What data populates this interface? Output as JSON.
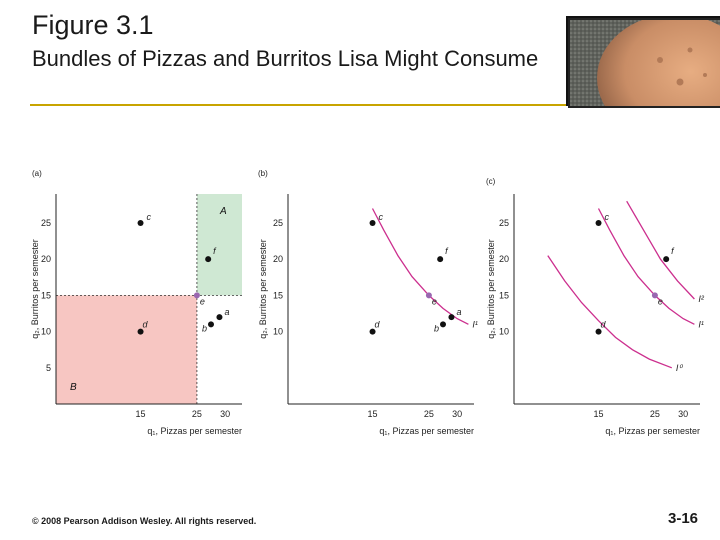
{
  "slide": {
    "title_line1": "Figure 3.1",
    "title_line2": "Bundles of Pizzas and Burritos Lisa Might Consume",
    "footer": "© 2008 Pearson Addison Wesley. All rights reserved.",
    "page_number": "3-16",
    "colors": {
      "accent_rule": "#c8a400",
      "curve": "#cc2f8e",
      "point": "#111111",
      "point_e": "#9a67b0",
      "region_A": "#cfe8d3",
      "region_B": "#f7c6c2"
    }
  },
  "chart_data": [
    {
      "panel": "(a)",
      "type": "scatter",
      "xlabel": "q₁, Pizzas per semester",
      "ylabel": "q₂, Burritos per semester",
      "xlim": [
        0,
        33
      ],
      "ylim": [
        0,
        29
      ],
      "xticks": [
        15,
        25,
        30
      ],
      "yticks": [
        5,
        10,
        15,
        20,
        25
      ],
      "regions": [
        {
          "label": "A",
          "x": [
            25,
            33
          ],
          "y": [
            15,
            29
          ],
          "color": "#cfe8d3"
        },
        {
          "label": "B",
          "x": [
            0,
            25
          ],
          "y": [
            0,
            15
          ],
          "color": "#f7c6c2"
        }
      ],
      "points": [
        {
          "label": "c",
          "x": 15,
          "y": 25
        },
        {
          "label": "f",
          "x": 27,
          "y": 20
        },
        {
          "label": "e",
          "x": 25,
          "y": 15
        },
        {
          "label": "a",
          "x": 29,
          "y": 12
        },
        {
          "label": "b",
          "x": 27.5,
          "y": 11
        },
        {
          "label": "d",
          "x": 15,
          "y": 10
        }
      ]
    },
    {
      "panel": "(b)",
      "type": "line",
      "xlabel": "q₁, Pizzas per semester",
      "ylabel": "q₂, Burritos per semester",
      "xlim": [
        0,
        33
      ],
      "ylim": [
        0,
        29
      ],
      "xticks": [
        15,
        25,
        30
      ],
      "yticks": [
        10,
        15,
        20,
        25
      ],
      "series": [
        {
          "name": "I¹",
          "points": [
            [
              15,
              27
            ],
            [
              17,
              24
            ],
            [
              19.5,
              20.5
            ],
            [
              22,
              17.6
            ],
            [
              25,
              15
            ],
            [
              27.5,
              13.2
            ],
            [
              30,
              11.8
            ],
            [
              32,
              11
            ]
          ]
        }
      ],
      "points": [
        {
          "label": "c",
          "x": 15,
          "y": 25
        },
        {
          "label": "f",
          "x": 27,
          "y": 20
        },
        {
          "label": "e",
          "x": 25,
          "y": 15
        },
        {
          "label": "a",
          "x": 29,
          "y": 12
        },
        {
          "label": "b",
          "x": 27.5,
          "y": 11
        },
        {
          "label": "d",
          "x": 15,
          "y": 10
        }
      ]
    },
    {
      "panel": "(c)",
      "type": "line",
      "xlabel": "q₁, Pizzas per semester",
      "ylabel": "q₂, Burritos per semester",
      "xlim": [
        0,
        33
      ],
      "ylim": [
        0,
        29
      ],
      "xticks": [
        15,
        25,
        30
      ],
      "yticks": [
        10,
        15,
        20,
        25
      ],
      "series": [
        {
          "name": "I²",
          "points": [
            [
              20,
              28
            ],
            [
              23,
              24
            ],
            [
              26,
              20
            ],
            [
              29,
              17
            ],
            [
              32,
              14.5
            ]
          ]
        },
        {
          "name": "I¹",
          "points": [
            [
              15,
              27
            ],
            [
              17,
              24
            ],
            [
              19.5,
              20.5
            ],
            [
              22,
              17.6
            ],
            [
              25,
              15
            ],
            [
              27.5,
              13.2
            ],
            [
              30,
              11.8
            ],
            [
              32,
              11
            ]
          ]
        },
        {
          "name": "I⁰",
          "points": [
            [
              6,
              20.5
            ],
            [
              9,
              17
            ],
            [
              12,
              14
            ],
            [
              15,
              11.5
            ],
            [
              18,
              9.2
            ],
            [
              21,
              7.5
            ],
            [
              24,
              6.2
            ],
            [
              28,
              5
            ]
          ]
        }
      ],
      "points": [
        {
          "label": "c",
          "x": 15,
          "y": 25
        },
        {
          "label": "f",
          "x": 27,
          "y": 20
        },
        {
          "label": "e",
          "x": 25,
          "y": 15
        },
        {
          "label": "d",
          "x": 15,
          "y": 10
        }
      ]
    }
  ]
}
